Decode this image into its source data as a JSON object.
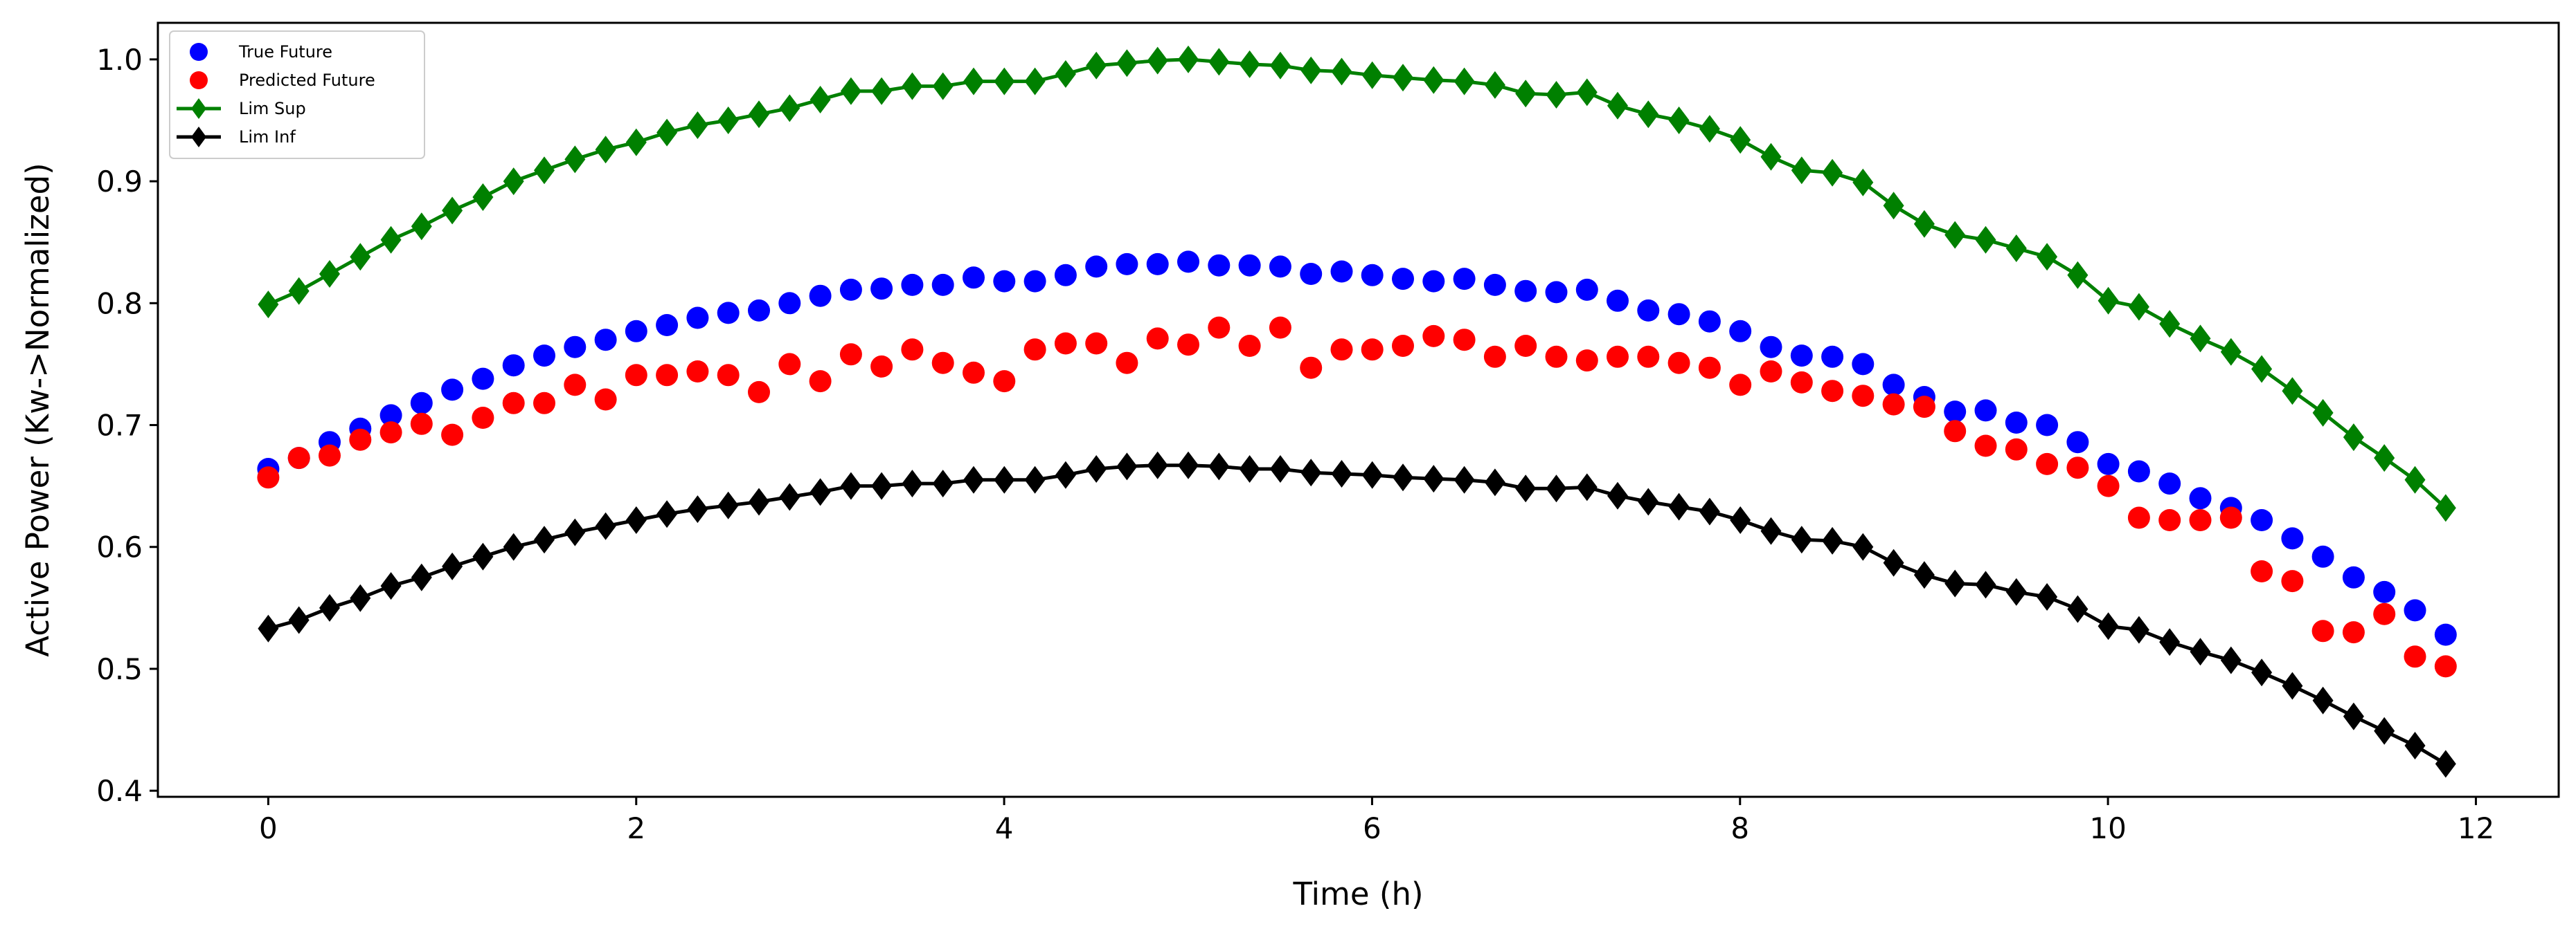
{
  "chart_data": {
    "type": "scatter",
    "title": "",
    "xlabel": "Time (h)",
    "ylabel": "Active Power (Kw->Normalized)",
    "xlim": [
      -0.6,
      12.45
    ],
    "ylim": [
      0.395,
      1.03
    ],
    "xticks": [
      0,
      2,
      4,
      6,
      8,
      10,
      12
    ],
    "yticks": [
      0.4,
      0.5,
      0.6,
      0.7,
      0.8,
      0.9,
      1.0
    ],
    "xtick_labels": [
      "0",
      "2",
      "4",
      "6",
      "8",
      "10",
      "12"
    ],
    "ytick_labels": [
      "0.4",
      "0.5",
      "0.6",
      "0.7",
      "0.8",
      "0.9",
      "1.0"
    ],
    "legend_position": "top-left",
    "x_start": 0,
    "x_step": 0.1667,
    "series": [
      {
        "name": "True Future",
        "color": "#0000ff",
        "marker": "circle",
        "line": false,
        "values": [
          0.664,
          0.673,
          0.686,
          0.697,
          0.708,
          0.718,
          0.729,
          0.738,
          0.749,
          0.757,
          0.764,
          0.77,
          0.777,
          0.782,
          0.788,
          0.792,
          0.794,
          0.8,
          0.806,
          0.811,
          0.812,
          0.815,
          0.815,
          0.821,
          0.818,
          0.818,
          0.823,
          0.83,
          0.832,
          0.832,
          0.834,
          0.831,
          0.831,
          0.83,
          0.824,
          0.826,
          0.823,
          0.82,
          0.818,
          0.82,
          0.815,
          0.81,
          0.809,
          0.811,
          0.802,
          0.794,
          0.791,
          0.785,
          0.777,
          0.764,
          0.757,
          0.756,
          0.75,
          0.733,
          0.723,
          0.711,
          0.712,
          0.702,
          0.7,
          0.686,
          0.668,
          0.662,
          0.652,
          0.64,
          0.632,
          0.622,
          0.607,
          0.592,
          0.575,
          0.563,
          0.548,
          0.528
        ]
      },
      {
        "name": "Predicted Future",
        "color": "#ff0000",
        "marker": "circle",
        "line": false,
        "values": [
          0.657,
          0.673,
          0.675,
          0.688,
          0.694,
          0.701,
          0.692,
          0.706,
          0.718,
          0.718,
          0.733,
          0.721,
          0.741,
          0.741,
          0.744,
          0.741,
          0.727,
          0.75,
          0.736,
          0.758,
          0.748,
          0.762,
          0.751,
          0.743,
          0.736,
          0.762,
          0.767,
          0.767,
          0.751,
          0.771,
          0.766,
          0.78,
          0.765,
          0.78,
          0.747,
          0.762,
          0.762,
          0.765,
          0.773,
          0.77,
          0.756,
          0.765,
          0.756,
          0.753,
          0.756,
          0.756,
          0.751,
          0.747,
          0.733,
          0.744,
          0.735,
          0.728,
          0.724,
          0.717,
          0.715,
          0.695,
          0.683,
          0.68,
          0.668,
          0.665,
          0.65,
          0.624,
          0.622,
          0.622,
          0.624,
          0.58,
          0.572,
          0.531,
          0.53,
          0.545,
          0.51,
          0.502
        ]
      },
      {
        "name": "Lim Sup",
        "color": "#008000",
        "marker": "diamond",
        "line": true,
        "values": [
          0.799,
          0.81,
          0.824,
          0.838,
          0.852,
          0.863,
          0.876,
          0.887,
          0.9,
          0.909,
          0.918,
          0.926,
          0.932,
          0.94,
          0.946,
          0.95,
          0.955,
          0.96,
          0.967,
          0.974,
          0.974,
          0.978,
          0.978,
          0.982,
          0.982,
          0.982,
          0.988,
          0.995,
          0.997,
          0.999,
          1.0,
          0.998,
          0.996,
          0.995,
          0.991,
          0.99,
          0.987,
          0.985,
          0.983,
          0.982,
          0.979,
          0.972,
          0.971,
          0.973,
          0.962,
          0.955,
          0.95,
          0.943,
          0.934,
          0.92,
          0.909,
          0.907,
          0.899,
          0.88,
          0.865,
          0.856,
          0.852,
          0.845,
          0.838,
          0.823,
          0.802,
          0.797,
          0.783,
          0.771,
          0.76,
          0.746,
          0.728,
          0.71,
          0.69,
          0.673,
          0.655,
          0.632
        ]
      },
      {
        "name": "Lim Inf",
        "color": "#000000",
        "marker": "diamond",
        "line": true,
        "values": [
          0.533,
          0.54,
          0.55,
          0.558,
          0.568,
          0.575,
          0.584,
          0.592,
          0.6,
          0.606,
          0.612,
          0.617,
          0.622,
          0.627,
          0.631,
          0.634,
          0.637,
          0.641,
          0.645,
          0.65,
          0.65,
          0.652,
          0.652,
          0.655,
          0.655,
          0.655,
          0.659,
          0.664,
          0.666,
          0.667,
          0.667,
          0.666,
          0.664,
          0.664,
          0.661,
          0.66,
          0.659,
          0.657,
          0.656,
          0.655,
          0.653,
          0.648,
          0.648,
          0.649,
          0.642,
          0.637,
          0.633,
          0.629,
          0.622,
          0.613,
          0.606,
          0.605,
          0.6,
          0.587,
          0.577,
          0.57,
          0.569,
          0.563,
          0.559,
          0.549,
          0.535,
          0.532,
          0.522,
          0.514,
          0.507,
          0.497,
          0.486,
          0.474,
          0.461,
          0.449,
          0.437,
          0.422
        ]
      }
    ]
  }
}
